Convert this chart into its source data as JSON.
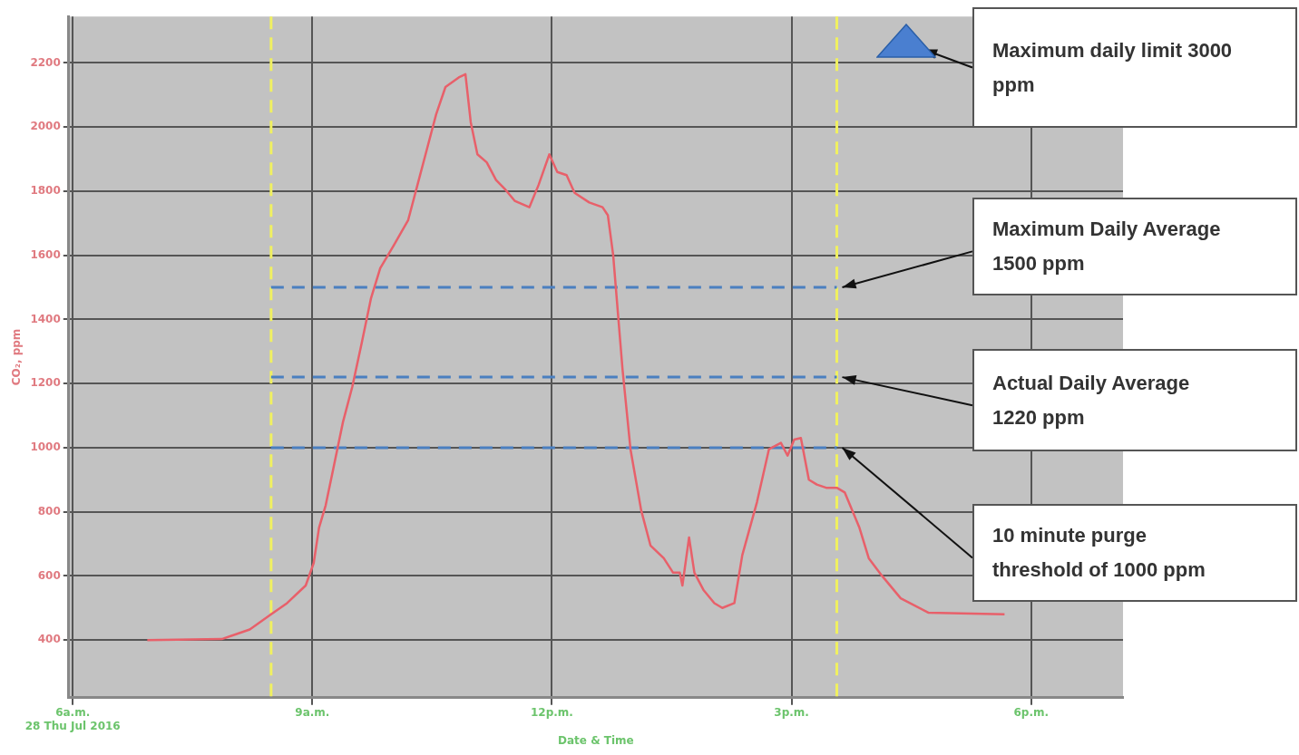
{
  "chart_data": {
    "type": "line",
    "xlabel": "Date & Time",
    "ylabel": "CO₂, ppm",
    "x": [
      "2016-07-28T06:56",
      "2016-07-28T07:52",
      "2016-07-28T08:13",
      "2016-07-28T08:29",
      "2016-07-28T08:41",
      "2016-07-28T08:55",
      "2016-07-28T09:01",
      "2016-07-28T09:05",
      "2016-07-28T09:10",
      "2016-07-28T09:16",
      "2016-07-28T09:23",
      "2016-07-28T09:30",
      "2016-07-28T09:37",
      "2016-07-28T09:44",
      "2016-07-28T09:51",
      "2016-07-28T10:01",
      "2016-07-28T10:12",
      "2016-07-28T10:19",
      "2016-07-28T10:26",
      "2016-07-28T10:33",
      "2016-07-28T10:40",
      "2016-07-28T10:50",
      "2016-07-28T10:55",
      "2016-07-28T10:59",
      "2016-07-28T11:04",
      "2016-07-28T11:11",
      "2016-07-28T11:18",
      "2016-07-28T11:25",
      "2016-07-28T11:32",
      "2016-07-28T11:43",
      "2016-07-28T11:50",
      "2016-07-28T11:58",
      "2016-07-28T12:04",
      "2016-07-28T12:11",
      "2016-07-28T12:17",
      "2016-07-28T12:28",
      "2016-07-28T12:38",
      "2016-07-28T12:42",
      "2016-07-28T12:46",
      "2016-07-28T12:53",
      "2016-07-28T12:59",
      "2016-07-28T13:07",
      "2016-07-28T13:14",
      "2016-07-28T13:24",
      "2016-07-28T13:31",
      "2016-07-28T13:36",
      "2016-07-28T13:38",
      "2016-07-28T13:43",
      "2016-07-28T13:47",
      "2016-07-28T13:54",
      "2016-07-28T14:02",
      "2016-07-28T14:08",
      "2016-07-28T14:17",
      "2016-07-28T14:23",
      "2016-07-28T14:34",
      "2016-07-28T14:43",
      "2016-07-28T14:52",
      "2016-07-28T14:57",
      "2016-07-28T15:02",
      "2016-07-28T15:07",
      "2016-07-28T15:13",
      "2016-07-28T15:19",
      "2016-07-28T15:26",
      "2016-07-28T15:34",
      "2016-07-28T15:40",
      "2016-07-28T15:51",
      "2016-07-28T15:58",
      "2016-07-28T16:08",
      "2016-07-28T16:22",
      "2016-07-28T16:43",
      "2016-07-28T17:40"
    ],
    "series": [
      {
        "color": "#e8606a",
        "values": [
          400,
          403,
          433,
          480,
          515,
          570,
          640,
          750,
          820,
          940,
          1080,
          1190,
          1325,
          1465,
          1560,
          1630,
          1710,
          1820,
          1930,
          2040,
          2125,
          2155,
          2165,
          2015,
          1915,
          1890,
          1835,
          1805,
          1770,
          1750,
          1820,
          1915,
          1860,
          1850,
          1795,
          1765,
          1750,
          1725,
          1600,
          1245,
          995,
          805,
          695,
          655,
          610,
          610,
          570,
          720,
          610,
          555,
          515,
          500,
          515,
          665,
          830,
          995,
          1015,
          975,
          1025,
          1030,
          900,
          885,
          875,
          875,
          860,
          750,
          655,
          600,
          530,
          485,
          480
        ]
      }
    ],
    "xlim": [
      "2016-07-28T05:57",
      "2016-07-28T19:09"
    ],
    "ylim": [
      220,
      2345
    ],
    "xticks": [
      {
        "value": "2016-07-28T06:00",
        "label": "6a.m.\n28 Thu Jul 2016"
      },
      {
        "value": "2016-07-28T09:00",
        "label": "9a.m."
      },
      {
        "value": "2016-07-28T12:00",
        "label": "12p.m."
      },
      {
        "value": "2016-07-28T15:00",
        "label": "3p.m."
      },
      {
        "value": "2016-07-28T18:00",
        "label": "6p.m."
      }
    ],
    "yticks": [
      400,
      600,
      800,
      1000,
      1200,
      1400,
      1600,
      1800,
      2000,
      2200
    ],
    "grid": true,
    "legend": false,
    "marker": "none",
    "line_style": "solid",
    "ref_lines": [
      {
        "axis": "x",
        "value": "2016-07-28T08:29",
        "color": "#f0f060",
        "line_style": "dashed"
      },
      {
        "axis": "x",
        "value": "2016-07-28T15:34",
        "color": "#f0f060",
        "line_style": "dashed"
      },
      {
        "axis": "y",
        "value": 1500,
        "label": "Maximum Daily Average 1500 ppm",
        "color": "#4a7fc0",
        "line_style": "dashed"
      },
      {
        "axis": "y",
        "value": 1220,
        "label": "Actual Daily Average 1220 ppm",
        "color": "#4a7fc0",
        "line_style": "dashed"
      },
      {
        "axis": "y",
        "value": 1000,
        "label": "10 minute purge threshold of 1000 ppm",
        "color": "#4a7fc0",
        "line_style": "dashed"
      }
    ],
    "annotations": [
      "Maximum daily limit 3000 ppm"
    ]
  }
}
